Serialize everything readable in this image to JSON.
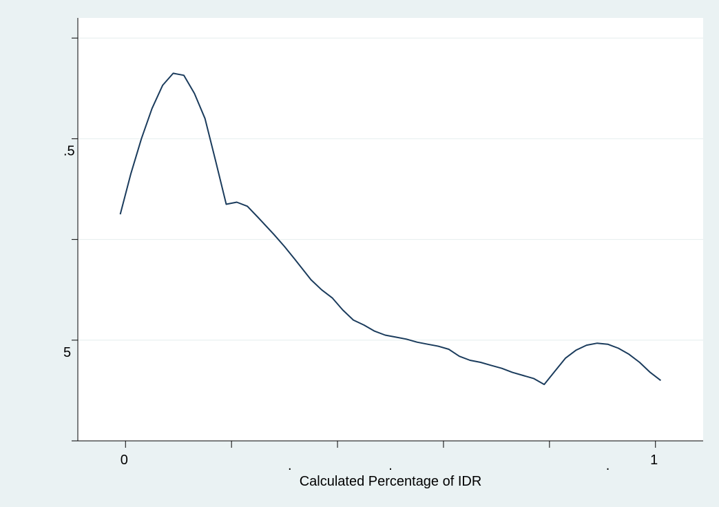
{
  "chart_data": {
    "type": "line",
    "title": "",
    "xlabel": "Calculated Percentage of IDR",
    "ylabel": "",
    "xlim": [
      -0.09,
      1.09
    ],
    "ylim": [
      0,
      4.2
    ],
    "grid": true,
    "colors": {
      "background": "#eaf2f3",
      "plot_background": "#ffffff",
      "line": "#1a3b5c",
      "grid": "#e4eeee"
    },
    "y_ticks": [
      {
        "value": 0.0,
        "label": ""
      },
      {
        "value": 1.0,
        "label": "5"
      },
      {
        "value": 2.0,
        "label": ""
      },
      {
        "value": 3.0,
        "label": ".5"
      },
      {
        "value": 4.0,
        "label": ""
      }
    ],
    "x_ticks": [
      {
        "value": 0.0,
        "label": "0"
      },
      {
        "value": 0.2,
        "label": ""
      },
      {
        "value": 0.4,
        "label": ""
      },
      {
        "value": 0.6,
        "label": ""
      },
      {
        "value": 0.8,
        "label": ""
      },
      {
        "value": 1.0,
        "label": "1"
      }
    ],
    "x_minor_marks": [
      {
        "value": 0.31,
        "label": "."
      },
      {
        "value": 0.5,
        "label": "."
      },
      {
        "value": 0.91,
        "label": "."
      }
    ],
    "series": [
      {
        "x": [
          -0.01,
          0.01,
          0.03,
          0.05,
          0.07,
          0.09,
          0.11,
          0.13,
          0.15,
          0.17,
          0.19,
          0.21,
          0.23,
          0.25,
          0.28,
          0.3,
          0.32,
          0.35,
          0.37,
          0.39,
          0.41,
          0.43,
          0.45,
          0.47,
          0.49,
          0.51,
          0.53,
          0.55,
          0.57,
          0.59,
          0.61,
          0.63,
          0.65,
          0.67,
          0.69,
          0.71,
          0.73,
          0.75,
          0.77,
          0.79,
          0.81,
          0.83,
          0.85,
          0.87,
          0.89,
          0.91,
          0.93,
          0.95,
          0.97,
          0.99,
          1.01
        ],
        "y": [
          2.25,
          2.65,
          3.0,
          3.3,
          3.53,
          3.65,
          3.63,
          3.45,
          3.2,
          2.78,
          2.35,
          2.37,
          2.33,
          2.22,
          2.05,
          1.93,
          1.8,
          1.6,
          1.5,
          1.42,
          1.3,
          1.2,
          1.15,
          1.09,
          1.05,
          1.03,
          1.01,
          0.98,
          0.96,
          0.94,
          0.91,
          0.84,
          0.8,
          0.78,
          0.75,
          0.72,
          0.68,
          0.65,
          0.62,
          0.56,
          0.69,
          0.82,
          0.9,
          0.95,
          0.97,
          0.96,
          0.92,
          0.86,
          0.78,
          0.68,
          0.6
        ]
      }
    ]
  }
}
